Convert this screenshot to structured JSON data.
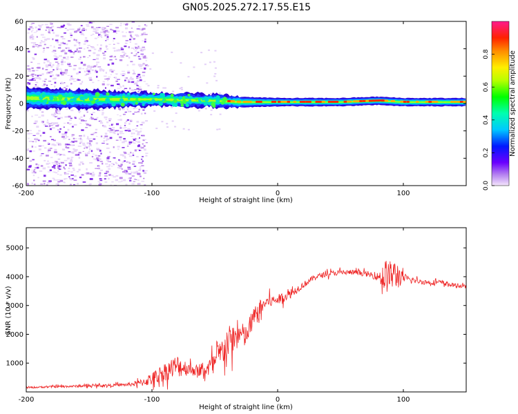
{
  "title": "GN05.2025.272.17.55.E15",
  "chart_data": [
    {
      "type": "heatmap",
      "xlabel": "Height of straight line (km)",
      "ylabel": "Frequency (Hz)",
      "xlim": [
        -200,
        150
      ],
      "ylim": [
        -60,
        60
      ],
      "x_ticks": [
        "-200",
        "-100",
        "0",
        "100"
      ],
      "y_ticks": [
        "60",
        "40",
        "20",
        "0",
        "-20",
        "-40",
        "-60"
      ],
      "colorbar": {
        "label": "Normalized spectral amplitude",
        "range": [
          0,
          1
        ],
        "ticks": [
          "0.0",
          "0.2",
          "0.4",
          "0.6",
          "0.8"
        ]
      },
      "ridge": {
        "description_points_x": [
          -200,
          -150,
          -100,
          -50,
          -30,
          0,
          50,
          80,
          100,
          150
        ],
        "center_freq_hz": [
          4,
          3,
          3,
          2,
          1,
          1,
          1,
          2,
          1,
          1
        ],
        "half_width_hz": [
          8,
          7,
          5,
          5,
          4,
          3,
          3,
          3,
          3,
          3
        ]
      },
      "scatter_noise_region_x": [
        -200,
        -105
      ]
    },
    {
      "type": "line",
      "xlabel": "Height of straight line (km)",
      "ylabel": "SNR (10 * v/v)",
      "xlim": [
        -200,
        150
      ],
      "ylim": [
        0,
        5700
      ],
      "x_ticks": [
        "-200",
        "-100",
        "0",
        "100"
      ],
      "y_ticks": [
        "1000",
        "2000",
        "3000",
        "4000",
        "5000"
      ],
      "series": [
        {
          "name": "SNR",
          "color": "#ee2222",
          "x": [
            -200,
            -180,
            -160,
            -140,
            -120,
            -110,
            -100,
            -90,
            -80,
            -70,
            -60,
            -50,
            -40,
            -30,
            -25,
            -20,
            -10,
            0,
            10,
            20,
            30,
            40,
            50,
            60,
            70,
            80,
            85,
            90,
            95,
            100,
            110,
            120,
            130,
            140,
            150
          ],
          "y": [
            150,
            180,
            200,
            220,
            250,
            300,
            450,
            700,
            900,
            800,
            700,
            1000,
            1700,
            2000,
            1900,
            2500,
            3100,
            3200,
            3400,
            3700,
            4000,
            4100,
            4150,
            4150,
            4100,
            4000,
            4000,
            4050,
            4050,
            3950,
            3850,
            3800,
            3800,
            3700,
            3650
          ],
          "spread": [
            60,
            80,
            90,
            100,
            120,
            250,
            500,
            700,
            900,
            500,
            400,
            900,
            1300,
            1000,
            900,
            900,
            500,
            400,
            350,
            250,
            200,
            200,
            200,
            200,
            200,
            300,
            1400,
            1100,
            1200,
            300,
            200,
            200,
            200,
            150,
            150
          ]
        }
      ]
    }
  ]
}
